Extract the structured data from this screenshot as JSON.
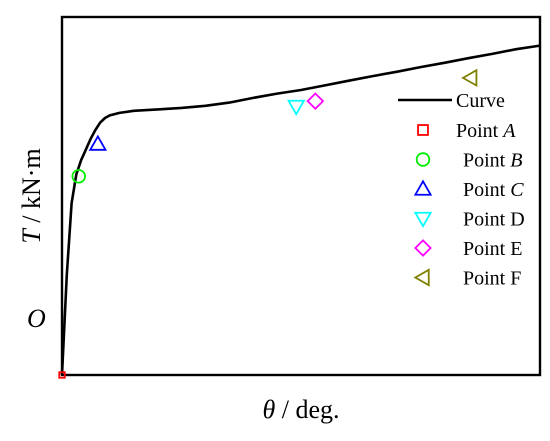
{
  "chart_data": {
    "type": "line",
    "title": "",
    "xlabel": {
      "symbol": "θ",
      "unit": " / deg."
    },
    "ylabel": {
      "symbol": "T",
      "unit": " / kN·m"
    },
    "origin_label": "O",
    "xlim": [
      0,
      100
    ],
    "ylim": [
      0,
      100
    ],
    "grid": false,
    "legend_position": "right",
    "ticks": "none",
    "series": [
      {
        "name": "Curve",
        "color": "#000000",
        "points": [
          [
            0,
            0
          ],
          [
            1,
            28
          ],
          [
            2,
            48
          ],
          [
            3,
            56
          ],
          [
            4,
            60
          ],
          [
            5,
            63
          ],
          [
            6,
            66
          ],
          [
            7,
            68.5
          ],
          [
            8,
            70.5
          ],
          [
            9,
            71.8
          ],
          [
            10,
            72.5
          ],
          [
            12,
            73.2
          ],
          [
            15,
            73.8
          ],
          [
            20,
            74.2
          ],
          [
            25,
            74.6
          ],
          [
            30,
            75.2
          ],
          [
            35,
            76.1
          ],
          [
            40,
            77.4
          ],
          [
            45,
            78.6
          ],
          [
            50,
            79.6
          ],
          [
            55,
            80.9
          ],
          [
            60,
            82.2
          ],
          [
            65,
            83.5
          ],
          [
            70,
            84.7
          ],
          [
            75,
            86
          ],
          [
            80,
            87.2
          ],
          [
            85,
            88.5
          ],
          [
            90,
            89.7
          ],
          [
            95,
            91
          ],
          [
            100,
            92
          ]
        ]
      }
    ],
    "markers": [
      {
        "name": "Point ",
        "name_italic": "A",
        "x": 0,
        "y": 0,
        "symbol": "square",
        "color": "#ff0000"
      },
      {
        "name": "Point ",
        "name_italic": "B",
        "x": 3.5,
        "y": 55.5,
        "symbol": "circle",
        "color": "#00ee00"
      },
      {
        "name": "Point ",
        "name_italic": "C",
        "x": 7.5,
        "y": 64.5,
        "symbol": "triangle-up",
        "color": "#0000ff"
      },
      {
        "name": "Point D",
        "name_italic": "",
        "x": 49,
        "y": 75,
        "symbol": "triangle-down",
        "color": "#00ffff"
      },
      {
        "name": "Point E",
        "name_italic": "",
        "x": 53,
        "y": 76.5,
        "symbol": "diamond",
        "color": "#ff00ff"
      },
      {
        "name": "Point F",
        "name_italic": "",
        "x": 85.5,
        "y": 83,
        "symbol": "triangle-left",
        "color": "#808000"
      }
    ]
  }
}
